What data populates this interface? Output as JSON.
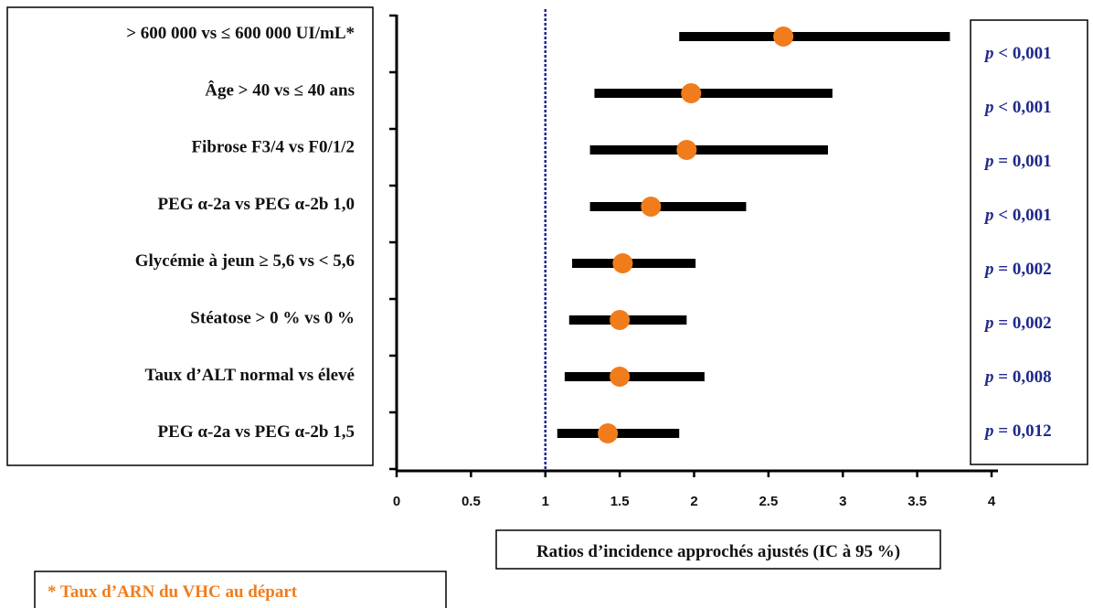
{
  "chart_data": {
    "type": "forest",
    "xlabel": "Ratios d’incidence approchés ajustés (IC à 95 %)",
    "xlim": [
      0,
      4
    ],
    "xticks": [
      "0",
      "0.5",
      "1",
      "1.5",
      "2",
      "2.5",
      "3",
      "3.5",
      "4"
    ],
    "reference_line": 1,
    "marker_color": "#f07c1b",
    "line_color": "#000000",
    "pvalue_color": "#1f2a8a",
    "rows": [
      {
        "label": "> 600 000 vs ≤ 600 000 UI/mL*",
        "estimate": 2.6,
        "lower": 1.9,
        "upper": 3.72,
        "p_symbol": "p",
        "p_rest": " < 0,001"
      },
      {
        "label": "Âge > 40 vs ≤ 40 ans",
        "estimate": 1.98,
        "lower": 1.33,
        "upper": 2.93,
        "p_symbol": "p",
        "p_rest": " < 0,001"
      },
      {
        "label": "Fibrose F3/4 vs F0/1/2",
        "estimate": 1.95,
        "lower": 1.3,
        "upper": 2.9,
        "p_symbol": "p",
        "p_rest": " = 0,001"
      },
      {
        "label": "PEG α-2a vs PEG α-2b 1,0",
        "estimate": 1.71,
        "lower": 1.3,
        "upper": 2.35,
        "p_symbol": "p",
        "p_rest": " < 0,001"
      },
      {
        "label": "Glycémie à jeun ≥ 5,6 vs < 5,6",
        "estimate": 1.52,
        "lower": 1.18,
        "upper": 2.01,
        "p_symbol": "p",
        "p_rest": " = 0,002"
      },
      {
        "label": "Stéatose > 0 % vs 0 %",
        "estimate": 1.5,
        "lower": 1.16,
        "upper": 1.95,
        "p_symbol": "p",
        "p_rest": " = 0,002"
      },
      {
        "label": "Taux d’ALT normal vs élevé",
        "estimate": 1.5,
        "lower": 1.13,
        "upper": 2.07,
        "p_symbol": "p",
        "p_rest": " = 0,008"
      },
      {
        "label": "PEG α-2a vs PEG α-2b 1,5",
        "estimate": 1.42,
        "lower": 1.08,
        "upper": 1.9,
        "p_symbol": "p",
        "p_rest": " = 0,012"
      }
    ],
    "footnote": "* Taux d’ARN du VHC au départ"
  }
}
